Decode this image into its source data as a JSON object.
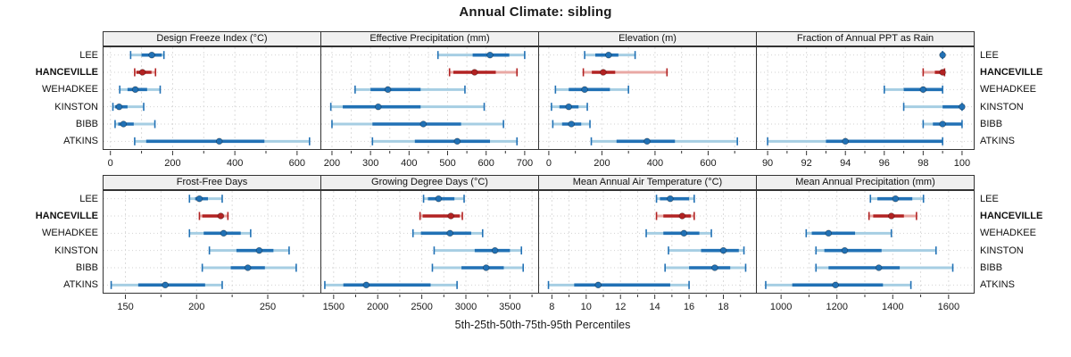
{
  "title": "Annual Climate: sibling",
  "footer": "5th-25th-50th-75th-95th Percentiles",
  "sites": [
    "LEE",
    "HANCEVILLE",
    "WEHADKEE",
    "KINSTON",
    "BIBB",
    "ATKINS"
  ],
  "highlight_site": "HANCEVILLE",
  "colors": {
    "blue": "#2171b5",
    "blue_light": "#a6cee3",
    "red": "#b22222",
    "red_light": "#e9a8a4",
    "grid": "#dcdcdc",
    "guide": "#d2d2d2",
    "strip_bg": "#f0f0f0",
    "border": "#333333",
    "tick": "#333333",
    "text": "#1a1a1a"
  },
  "chart_data": [
    {
      "type": "dot-whisker",
      "title": "Design Freeze Index (°C)",
      "row": 0,
      "col": 0,
      "xlim": [
        -25,
        675
      ],
      "ticks_major": [
        0,
        200,
        400,
        600
      ],
      "ticks_minor": [
        100,
        300,
        500
      ],
      "percentile_labels": [
        "p5",
        "p25",
        "p50",
        "p75",
        "p95"
      ],
      "values": [
        [
          65,
          100,
          133,
          165,
          172
        ],
        [
          78,
          84,
          103,
          132,
          145
        ],
        [
          30,
          55,
          80,
          118,
          160
        ],
        [
          8,
          15,
          28,
          55,
          107
        ],
        [
          15,
          25,
          42,
          75,
          143
        ],
        [
          78,
          115,
          350,
          495,
          640
        ]
      ]
    },
    {
      "type": "dot-whisker",
      "title": "Effective Precipitation (mm)",
      "row": 0,
      "col": 1,
      "xlim": [
        170,
        735
      ],
      "ticks_major": [
        200,
        300,
        400,
        500,
        600,
        700
      ],
      "ticks_minor": [
        250,
        350,
        450,
        550,
        650
      ],
      "values": [
        [
          475,
          565,
          610,
          660,
          700
        ],
        [
          505,
          515,
          570,
          625,
          680
        ],
        [
          260,
          300,
          345,
          430,
          545
        ],
        [
          197,
          228,
          320,
          430,
          595
        ],
        [
          200,
          305,
          437,
          535,
          645
        ],
        [
          305,
          415,
          525,
          610,
          680
        ]
      ]
    },
    {
      "type": "dot-whisker",
      "title": "Elevation (m)",
      "row": 0,
      "col": 2,
      "xlim": [
        -40,
        780
      ],
      "ticks_major": [
        0,
        200,
        400,
        600
      ],
      "ticks_minor": [
        100,
        300,
        500,
        700
      ],
      "values": [
        [
          135,
          175,
          225,
          262,
          325
        ],
        [
          130,
          162,
          205,
          250,
          445
        ],
        [
          25,
          75,
          135,
          230,
          300
        ],
        [
          10,
          40,
          75,
          112,
          145
        ],
        [
          15,
          50,
          85,
          122,
          155
        ],
        [
          160,
          255,
          370,
          475,
          710
        ]
      ]
    },
    {
      "type": "dot-whisker",
      "title": "Fraction of Annual PPT as Rain",
      "row": 0,
      "col": 3,
      "xlim": [
        89.4,
        100.6
      ],
      "ticks_major": [
        90,
        92,
        94,
        96,
        98,
        100
      ],
      "ticks_minor": [
        91,
        93,
        95,
        97,
        99
      ],
      "values": [
        [
          99,
          99,
          99,
          99,
          99
        ],
        [
          98,
          98.6,
          99,
          99.1,
          99.1
        ],
        [
          96,
          97,
          98,
          99,
          99
        ],
        [
          97,
          99,
          100,
          100,
          100
        ],
        [
          98,
          98.5,
          99,
          100,
          100
        ],
        [
          90,
          93,
          94,
          99,
          99
        ]
      ]
    },
    {
      "type": "dot-whisker",
      "title": "Frost-Free Days",
      "row": 1,
      "col": 0,
      "xlim": [
        134,
        287
      ],
      "ticks_major": [
        150,
        200,
        250
      ],
      "ticks_minor": [
        175,
        225,
        275
      ],
      "values": [
        [
          195,
          199,
          202,
          208,
          218
        ],
        [
          202,
          204,
          217,
          219,
          222
        ],
        [
          195,
          205,
          219,
          231,
          238
        ],
        [
          209,
          228,
          244,
          254,
          265
        ],
        [
          204,
          224,
          236,
          248,
          270
        ],
        [
          140,
          159,
          178,
          206,
          218
        ]
      ]
    },
    {
      "type": "dot-whisker",
      "title": "Growing Degree Days (°C)",
      "row": 1,
      "col": 1,
      "xlim": [
        1350,
        3820
      ],
      "ticks_major": [
        1500,
        2000,
        2500,
        3000,
        3500
      ],
      "ticks_minor": [
        1750,
        2250,
        2750,
        3250,
        3750
      ],
      "values": [
        [
          2520,
          2570,
          2690,
          2870,
          2980
        ],
        [
          2480,
          2510,
          2830,
          2930,
          2960
        ],
        [
          2400,
          2490,
          2820,
          3060,
          3190
        ],
        [
          2640,
          3100,
          3330,
          3500,
          3630
        ],
        [
          2620,
          2950,
          3230,
          3430,
          3650
        ],
        [
          1400,
          1610,
          1870,
          2600,
          2900
        ]
      ]
    },
    {
      "type": "dot-whisker",
      "title": "Mean Annual Air Temperature (°C)",
      "row": 1,
      "col": 2,
      "xlim": [
        7.2,
        19.9
      ],
      "ticks_major": [
        8,
        10,
        12,
        14,
        16,
        18
      ],
      "ticks_minor": [
        9,
        11,
        13,
        15,
        17,
        19
      ],
      "values": [
        [
          14.1,
          14.3,
          14.9,
          16.0,
          16.3
        ],
        [
          14.1,
          14.5,
          15.6,
          16.1,
          16.3
        ],
        [
          13.5,
          14.5,
          15.7,
          16.6,
          17.3
        ],
        [
          14.8,
          16.7,
          18.0,
          18.9,
          19.2
        ],
        [
          14.6,
          16.0,
          17.5,
          18.4,
          19.3
        ],
        [
          7.8,
          9.3,
          10.7,
          14.9,
          16.0
        ]
      ]
    },
    {
      "type": "dot-whisker",
      "title": "Mean Annual Precipitation (mm)",
      "row": 1,
      "col": 3,
      "xlim": [
        910,
        1690
      ],
      "ticks_major": [
        1000,
        1200,
        1400,
        1600
      ],
      "ticks_minor": [
        1100,
        1300,
        1500
      ],
      "values": [
        [
          1320,
          1345,
          1410,
          1470,
          1510
        ],
        [
          1315,
          1330,
          1395,
          1440,
          1485
        ],
        [
          1090,
          1110,
          1170,
          1265,
          1395
        ],
        [
          1125,
          1155,
          1228,
          1360,
          1555
        ],
        [
          1125,
          1170,
          1350,
          1425,
          1615
        ],
        [
          945,
          1040,
          1195,
          1365,
          1465
        ]
      ]
    }
  ]
}
